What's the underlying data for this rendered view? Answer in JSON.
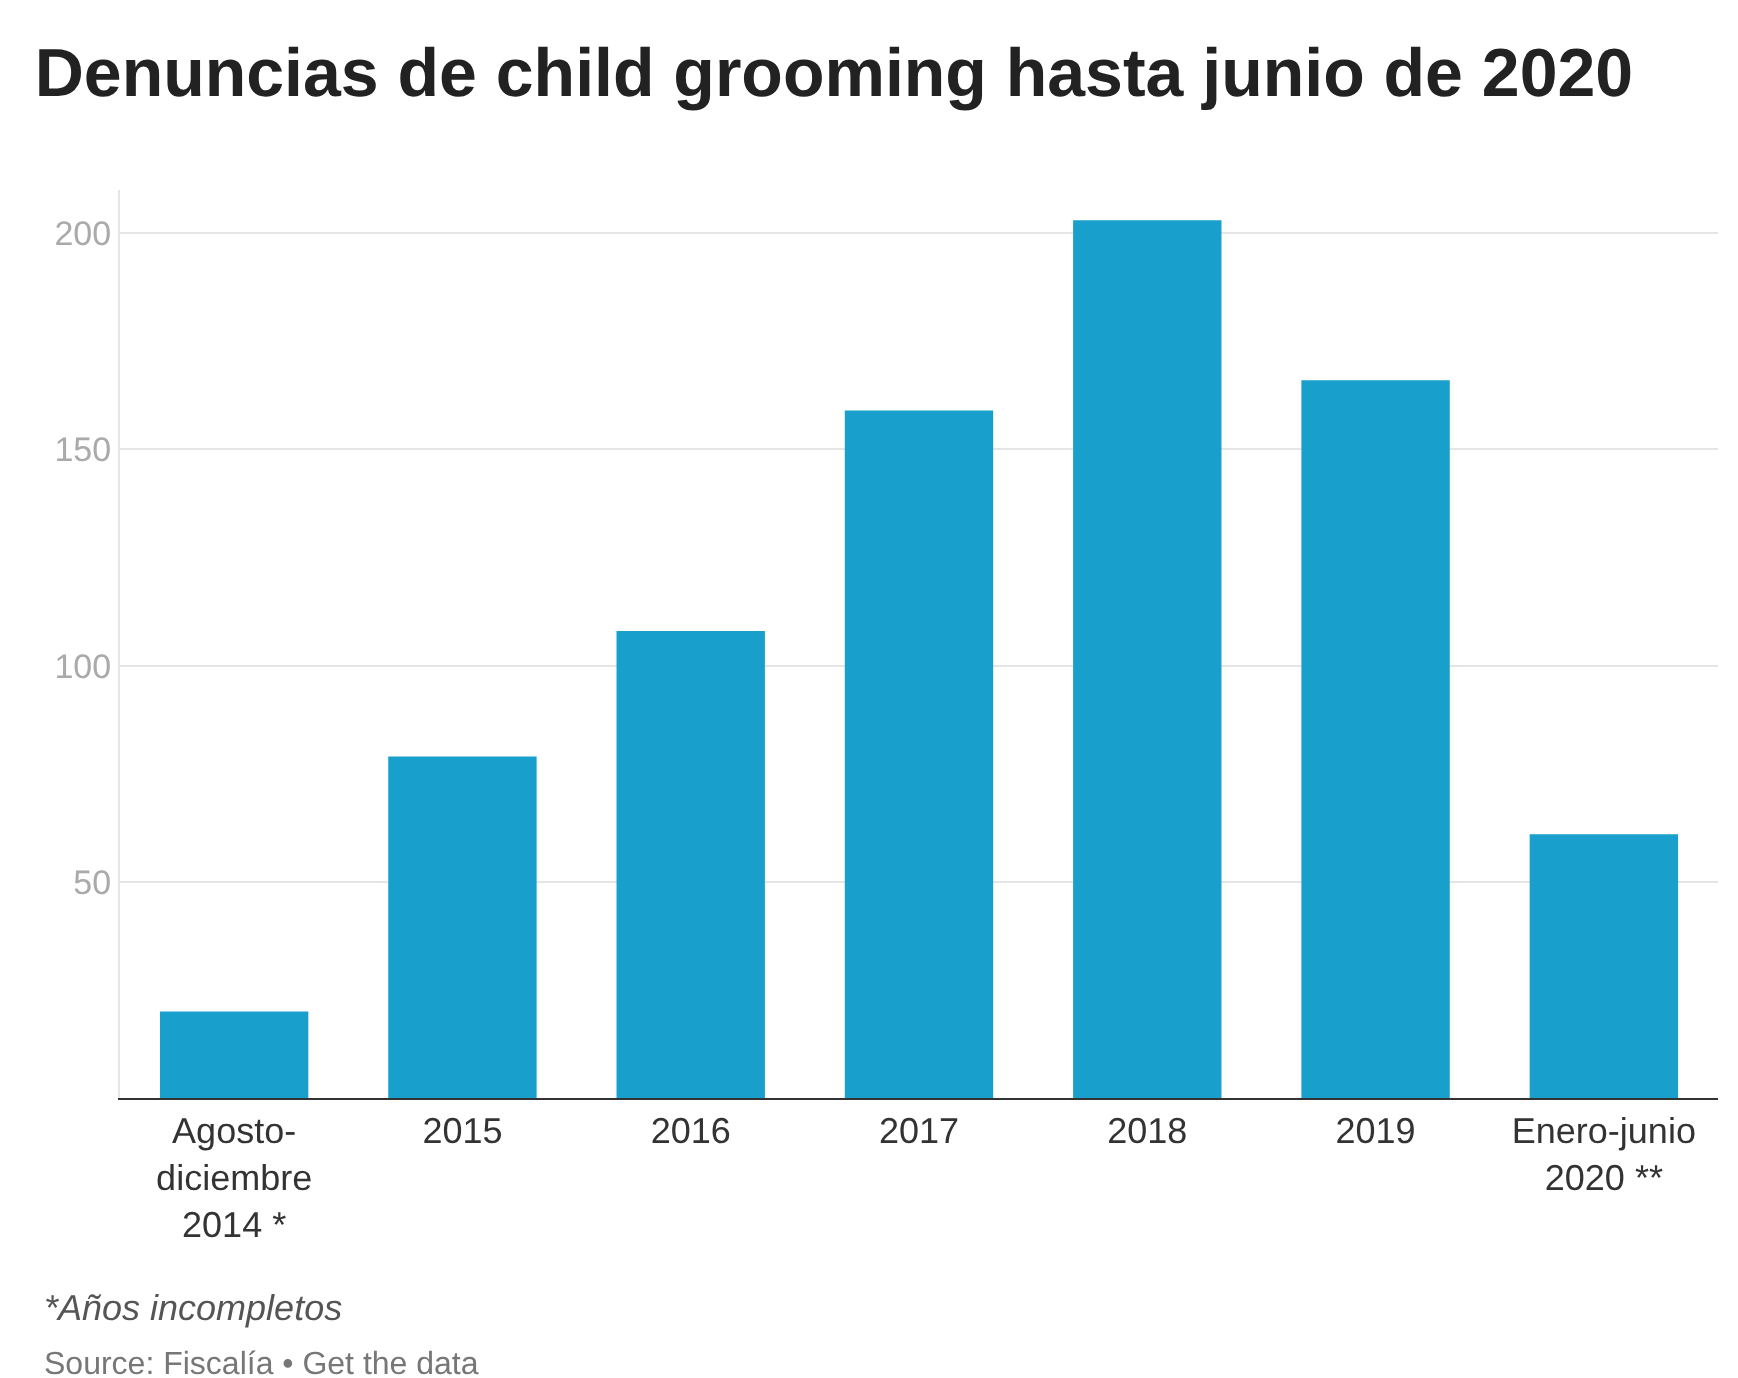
{
  "chart_data": {
    "type": "bar",
    "title": "Denuncias de child grooming hasta junio de 2020",
    "categories": [
      "Agosto-\ndiciembre\n2014 *",
      "2015",
      "2016",
      "2017",
      "2018",
      "2019",
      "Enero-junio\n2020 **"
    ],
    "values": [
      20,
      79,
      108,
      159,
      203,
      166,
      61
    ],
    "color": "#189fcc",
    "ylim": [
      0,
      210
    ],
    "yticks": [
      50,
      100,
      150,
      200
    ],
    "grid": "y",
    "annotations": [
      "*Años incompletos",
      "Source: Fiscalía • Get the data"
    ]
  }
}
